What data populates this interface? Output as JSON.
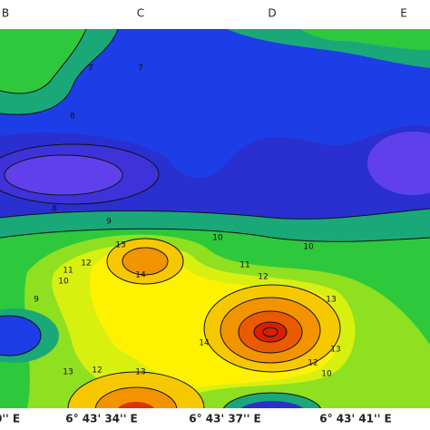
{
  "column_labels": [
    "B",
    "C",
    "D",
    "E"
  ],
  "coordinate_labels": [
    "0'' E",
    "6° 43' 34'' E",
    "6° 43' 37'' E",
    "6° 43' 41'' E"
  ],
  "contour_labels": [
    "7",
    "7",
    "8",
    "8",
    "9",
    "10",
    "11",
    "12",
    "13",
    "14",
    "10",
    "11",
    "12",
    "13",
    "10",
    "9",
    "12",
    "13",
    "10",
    "12",
    "14",
    "13",
    "13"
  ]
}
